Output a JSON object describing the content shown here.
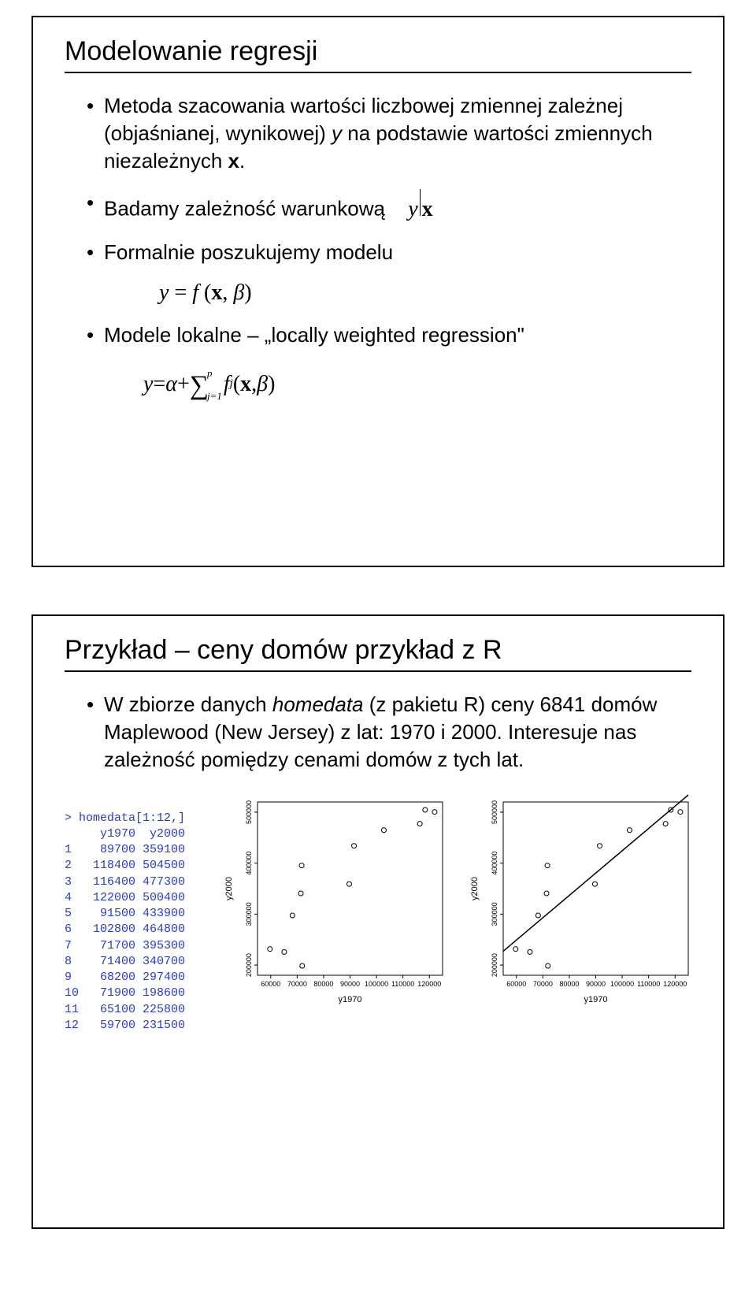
{
  "slide1": {
    "title": "Modelowanie regresji",
    "bullets": [
      {
        "pre": "Metoda szacowania wartości liczbowej zmiennej zależnej (objaśnianej, wynikowej) ",
        "y": "y",
        "mid": " na podstawie wartości zmiennych niezależnych ",
        "x": "x",
        "post": "."
      },
      {
        "text": "Badamy zależność warunkową",
        "math_y": "y",
        "math_bar": "│",
        "math_x": "x"
      },
      {
        "text": "Formalnie poszukujemy modelu"
      },
      {
        "text": "Modele lokalne – „locally weighted regression\""
      }
    ],
    "formula1": {
      "y": "y",
      "eq": " = ",
      "f": "f ",
      "lp": "(",
      "x": "x",
      "comma": ", ",
      "beta": "β",
      "rp": ")"
    },
    "formula2": {
      "y": "y",
      "eq": " = ",
      "alpha": "α",
      "plus": " + ",
      "sum_sup": "p",
      "sum_sub": "j=1",
      "f": "f",
      "fsub": "j",
      "lp": "(",
      "x": "x",
      "comma": ", ",
      "beta": "β",
      "rp": ")"
    }
  },
  "slide2": {
    "title": "Przykład – ceny domów przykład z R",
    "bullet": {
      "pre": "W zbiorze danych ",
      "it": "homedata",
      "post": " (z pakietu R) ceny 6841 domów Maplewood (New Jersey) z lat: 1970 i 2000. Interesuje nas zależność pomiędzy cenami domów z tych lat."
    },
    "console": {
      "prompt": "> homedata[1:12,]",
      "header": "     y1970  y2000",
      "rows": [
        "1    89700 359100",
        "2   118400 504500",
        "3   116400 477300",
        "4   122000 500400",
        "5    91500 433900",
        "6   102800 464800",
        "7    71700 395300",
        "8    71400 340700",
        "9    68200 297400",
        "10   71900 198600",
        "11   65100 225800",
        "12   59700 231500"
      ]
    },
    "plot": {
      "xlabel": "y1970",
      "ylabel": "y2000",
      "xlim": [
        55000,
        125000
      ],
      "ylim": [
        180000,
        520000
      ],
      "xticks": [
        60000,
        70000,
        80000,
        90000,
        100000,
        110000,
        120000
      ],
      "yticks": [
        200000,
        300000,
        400000,
        500000
      ],
      "points": [
        {
          "x": 89700,
          "y": 359100
        },
        {
          "x": 118400,
          "y": 504500
        },
        {
          "x": 116400,
          "y": 477300
        },
        {
          "x": 122000,
          "y": 500400
        },
        {
          "x": 91500,
          "y": 433900
        },
        {
          "x": 102800,
          "y": 464800
        },
        {
          "x": 71700,
          "y": 395300
        },
        {
          "x": 71400,
          "y": 340700
        },
        {
          "x": 68200,
          "y": 297400
        },
        {
          "x": 71900,
          "y": 198600
        },
        {
          "x": 65100,
          "y": 225800
        },
        {
          "x": 59700,
          "y": 231500
        }
      ],
      "box_color": "#000000",
      "point_color": "#000000",
      "line_color": "#000000",
      "background": "#ffffff"
    }
  }
}
